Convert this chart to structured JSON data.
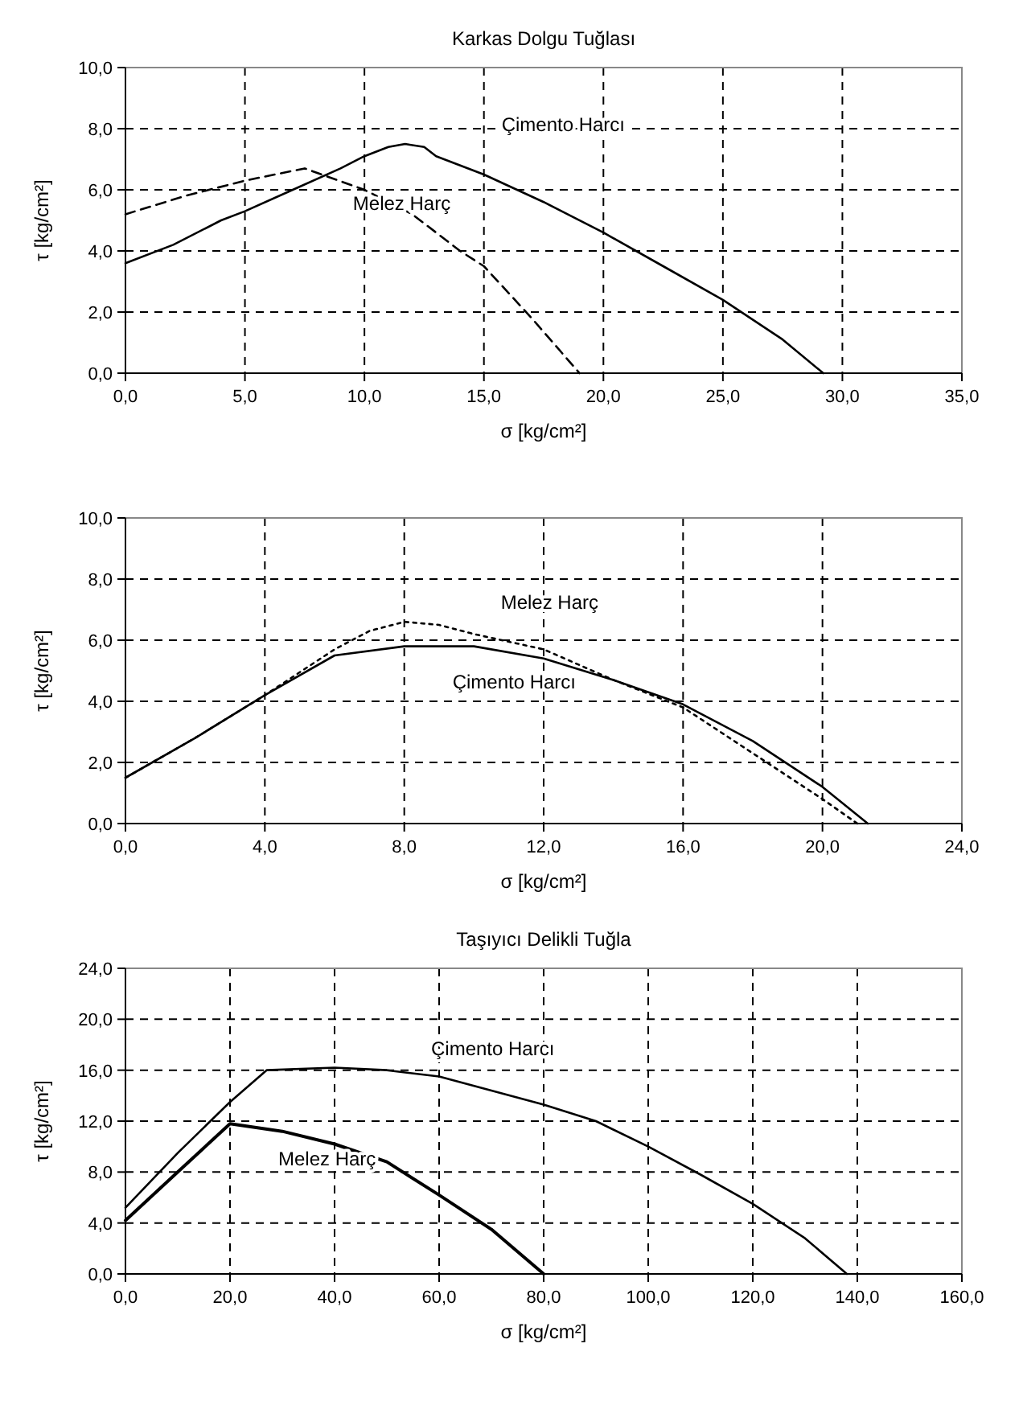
{
  "chart_data": [
    {
      "type": "line",
      "title": "Karkas Dolgu Tuğlası",
      "xlabel": "σ [kg/cm²]",
      "ylabel": "τ [kg/cm²]",
      "xlim": [
        0,
        35
      ],
      "ylim": [
        0,
        10
      ],
      "grid": true,
      "marker": "none",
      "xticks": [
        {
          "value": 0,
          "label": "0,0"
        },
        {
          "value": 5,
          "label": "5,0"
        },
        {
          "value": 10,
          "label": "10,0"
        },
        {
          "value": 15,
          "label": "15,0"
        },
        {
          "value": 20,
          "label": "20,0"
        },
        {
          "value": 25,
          "label": "25,0"
        },
        {
          "value": 30,
          "label": "30,0"
        },
        {
          "value": 35,
          "label": "35,0"
        }
      ],
      "yticks": [
        {
          "value": 0,
          "label": "0,0"
        },
        {
          "value": 2,
          "label": "2,0"
        },
        {
          "value": 4,
          "label": "4,0"
        },
        {
          "value": 6,
          "label": "6,0"
        },
        {
          "value": 8,
          "label": "8,0"
        },
        {
          "value": 10,
          "label": "10,0"
        }
      ],
      "series": [
        {
          "name": "Çimento Harcı",
          "color": "#000000",
          "line_style": "solid",
          "x": [
            0,
            2,
            4,
            5,
            7,
            9,
            10,
            11,
            11.7,
            12.5,
            13,
            15,
            17.5,
            20,
            22.5,
            25,
            27.5,
            29.2
          ],
          "values": [
            3.6,
            4.2,
            5,
            5.3,
            6,
            6.7,
            7.1,
            7.4,
            7.5,
            7.4,
            7.1,
            6.5,
            5.6,
            4.6,
            3.5,
            2.4,
            1.1,
            0
          ]
        },
        {
          "name": "Melez Harç",
          "color": "#000000",
          "line_style": "dashed",
          "x": [
            0,
            2.5,
            5,
            7.5,
            10,
            12,
            14,
            15,
            17,
            19
          ],
          "values": [
            5.2,
            5.8,
            6.3,
            6.7,
            6,
            5.2,
            4,
            3.5,
            1.8,
            0
          ]
        }
      ]
    },
    {
      "type": "line",
      "xlabel": "σ [kg/cm²]",
      "ylabel": "τ [kg/cm²]",
      "xlim": [
        0,
        24
      ],
      "ylim": [
        0,
        10
      ],
      "grid": true,
      "marker": "none",
      "xticks": [
        {
          "value": 0,
          "label": "0,0"
        },
        {
          "value": 4,
          "label": "4,0"
        },
        {
          "value": 8,
          "label": "8,0"
        },
        {
          "value": 12,
          "label": "12,0"
        },
        {
          "value": 16,
          "label": "16,0"
        },
        {
          "value": 20,
          "label": "20,0"
        },
        {
          "value": 24,
          "label": "24,0"
        }
      ],
      "yticks": [
        {
          "value": 0,
          "label": "0,0"
        },
        {
          "value": 2,
          "label": "2,0"
        },
        {
          "value": 4,
          "label": "4,0"
        },
        {
          "value": 6,
          "label": "6,0"
        },
        {
          "value": 8,
          "label": "8,0"
        },
        {
          "value": 10,
          "label": "10,0"
        }
      ],
      "series": [
        {
          "name": "Melez Harç",
          "color": "#000000",
          "line_style": "dotted",
          "x": [
            0,
            2,
            4,
            6,
            7,
            8,
            9,
            10,
            12,
            14,
            16,
            18,
            20,
            21
          ],
          "values": [
            1.5,
            2.8,
            4.2,
            5.7,
            6.3,
            6.6,
            6.5,
            6.2,
            5.7,
            4.7,
            3.8,
            2.3,
            0.8,
            0
          ]
        },
        {
          "name": "Çimento Harcı",
          "color": "#000000",
          "line_style": "solid",
          "x": [
            0,
            2,
            4,
            6,
            8,
            10,
            12,
            14,
            16,
            18,
            20,
            21.3
          ],
          "values": [
            1.5,
            2.8,
            4.2,
            5.5,
            5.8,
            5.8,
            5.4,
            4.7,
            3.9,
            2.7,
            1.2,
            0
          ]
        }
      ]
    },
    {
      "type": "line",
      "title": "Taşıyıcı Delikli Tuğla",
      "xlabel": "σ [kg/cm²]",
      "ylabel": "τ [kg/cm²]",
      "xlim": [
        0,
        160
      ],
      "ylim": [
        0,
        24
      ],
      "grid": true,
      "marker": "none",
      "xticks": [
        {
          "value": 0,
          "label": "0,0"
        },
        {
          "value": 20,
          "label": "20,0"
        },
        {
          "value": 40,
          "label": "40,0"
        },
        {
          "value": 60,
          "label": "60,0"
        },
        {
          "value": 80,
          "label": "80,0"
        },
        {
          "value": 100,
          "label": "100,0"
        },
        {
          "value": 120,
          "label": "120,0"
        },
        {
          "value": 140,
          "label": "140,0"
        },
        {
          "value": 160,
          "label": "160,0"
        }
      ],
      "yticks": [
        {
          "value": 0,
          "label": "0,0"
        },
        {
          "value": 4,
          "label": "4,0"
        },
        {
          "value": 8,
          "label": "8,0"
        },
        {
          "value": 12,
          "label": "12,0"
        },
        {
          "value": 16,
          "label": "16,0"
        },
        {
          "value": 20,
          "label": "20,0"
        },
        {
          "value": 24,
          "label": "24,0"
        }
      ],
      "series": [
        {
          "name": "Çimento Harcı",
          "color": "#000000",
          "line_style": "solid",
          "x": [
            0,
            10,
            20,
            27,
            40,
            50,
            60,
            80,
            90,
            100,
            110,
            120,
            130,
            138
          ],
          "values": [
            5.2,
            9.5,
            13.5,
            16,
            16.2,
            16,
            15.5,
            13.3,
            12,
            10,
            7.8,
            5.5,
            2.8,
            0
          ]
        },
        {
          "name": "Melez Harç",
          "color": "#000000",
          "line_style": "solid",
          "x": [
            0,
            10,
            20,
            30,
            40,
            50,
            60,
            70,
            80
          ],
          "values": [
            4.2,
            8,
            11.8,
            11.2,
            10.2,
            8.8,
            6.2,
            3.5,
            0
          ]
        }
      ]
    }
  ]
}
